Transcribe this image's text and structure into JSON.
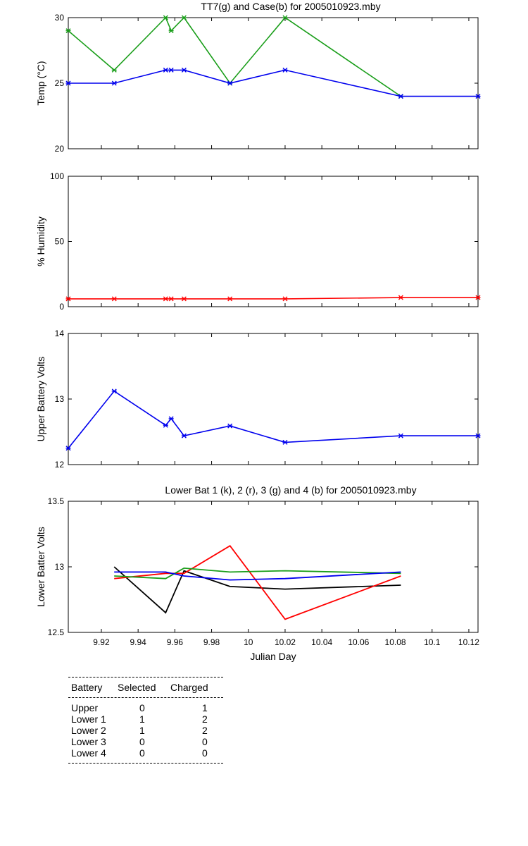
{
  "colors": {
    "green": "#1a9e1a",
    "blue": "#0000ee",
    "red": "#ff0000",
    "black": "#000000"
  },
  "chart_data": [
    {
      "type": "line",
      "title": "TT7(g) and Case(b) for 2005010923.mby",
      "xlabel": "",
      "ylabel": "Temp (°C)",
      "xlim": [
        9.902,
        10.125
      ],
      "ylim": [
        20,
        30
      ],
      "yticks": [
        "20",
        "25",
        "30"
      ],
      "markers": true,
      "series": [
        {
          "color": "green",
          "x": [
            9.902,
            9.927,
            9.955,
            9.958,
            9.965,
            9.99,
            10.02,
            10.083
          ],
          "y": [
            29,
            26,
            30,
            29,
            30,
            25,
            30,
            24
          ]
        },
        {
          "color": "blue",
          "x": [
            9.902,
            9.927,
            9.955,
            9.958,
            9.965,
            9.99,
            10.02,
            10.083,
            10.125
          ],
          "y": [
            25,
            25,
            26,
            26,
            26,
            25,
            26,
            24,
            24
          ]
        }
      ]
    },
    {
      "type": "line",
      "title": "",
      "xlabel": "",
      "ylabel": "% Humidity",
      "xlim": [
        9.902,
        10.125
      ],
      "ylim": [
        0,
        100
      ],
      "yticks": [
        "0",
        "50",
        "100"
      ],
      "markers": true,
      "series": [
        {
          "color": "red",
          "x": [
            9.902,
            9.927,
            9.955,
            9.958,
            9.965,
            9.99,
            10.02,
            10.083,
            10.125
          ],
          "y": [
            6,
            6,
            6,
            6,
            6,
            6,
            6,
            7,
            7
          ]
        }
      ]
    },
    {
      "type": "line",
      "title": "",
      "xlabel": "",
      "ylabel": "Upper Battery Volts",
      "xlim": [
        9.902,
        10.125
      ],
      "ylim": [
        12,
        14
      ],
      "yticks": [
        "12",
        "13",
        "14"
      ],
      "markers": true,
      "series": [
        {
          "color": "blue",
          "x": [
            9.902,
            9.927,
            9.955,
            9.958,
            9.965,
            9.99,
            10.02,
            10.083,
            10.125
          ],
          "y": [
            12.25,
            13.12,
            12.6,
            12.7,
            12.44,
            12.59,
            12.34,
            12.44,
            12.44
          ]
        }
      ]
    },
    {
      "type": "line",
      "title": "Lower Bat 1 (k), 2 (r), 3 (g) and 4 (b) for 2005010923.mby",
      "xlabel": "Julian Day",
      "ylabel": "Lower Batter Volts",
      "xlim": [
        9.902,
        10.125
      ],
      "ylim": [
        12.5,
        13.5
      ],
      "yticks": [
        "12.5",
        "13",
        "13.5"
      ],
      "xticks": [
        "9.92",
        "9.94",
        "9.96",
        "9.98",
        "10",
        "10.02",
        "10.04",
        "10.06",
        "10.08",
        "10.1",
        "10.12"
      ],
      "markers": false,
      "series": [
        {
          "color": "black",
          "x": [
            9.927,
            9.955,
            9.965,
            9.99,
            10.02,
            10.083
          ],
          "y": [
            13.0,
            12.65,
            12.97,
            12.85,
            12.83,
            12.86
          ]
        },
        {
          "color": "red",
          "x": [
            9.927,
            9.955,
            9.965,
            9.99,
            10.02,
            10.083
          ],
          "y": [
            12.91,
            12.95,
            12.95,
            13.16,
            12.6,
            12.93
          ]
        },
        {
          "color": "green",
          "x": [
            9.927,
            9.955,
            9.965,
            9.99,
            10.02,
            10.083
          ],
          "y": [
            12.93,
            12.91,
            12.99,
            12.96,
            12.97,
            12.95
          ]
        },
        {
          "color": "blue",
          "x": [
            9.927,
            9.955,
            9.965,
            9.99,
            10.02,
            10.083
          ],
          "y": [
            12.96,
            12.96,
            12.93,
            12.9,
            12.91,
            12.96
          ]
        }
      ]
    }
  ],
  "summary_table": {
    "headers": [
      "Battery",
      "Selected",
      "Charged"
    ],
    "rows": [
      {
        "battery": "Upper",
        "selected": "0",
        "charged": "1"
      },
      {
        "battery": "Lower 1",
        "selected": "1",
        "charged": "2"
      },
      {
        "battery": "Lower 2",
        "selected": "1",
        "charged": "2"
      },
      {
        "battery": "Lower 3",
        "selected": "0",
        "charged": "0"
      },
      {
        "battery": "Lower 4",
        "selected": "0",
        "charged": "0"
      }
    ]
  }
}
